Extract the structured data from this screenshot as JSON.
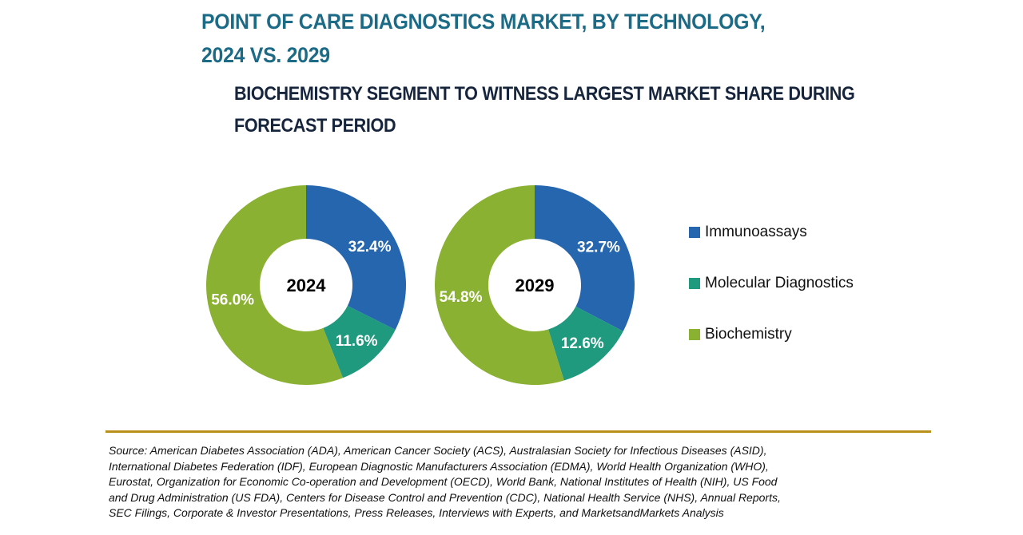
{
  "title_line1": "POINT OF CARE DIAGNOSTICS MARKET, BY TECHNOLOGY,",
  "title_line2": "2024 VS. 2029",
  "subtitle_line1": "BIOCHEMISTRY SEGMENT TO WITNESS LARGEST MARKET SHARE DURING",
  "subtitle_line2": "FORECAST PERIOD",
  "source_lines": [
    "Source: American Diabetes Association (ADA), American Cancer Society (ACS), Australasian Society for Infectious Diseases (ASID),",
    "International Diabetes Federation (IDF), European Diagnostic Manufacturers Association (EDMA), World Health Organization (WHO),",
    "Eurostat, Organization for Economic Co-operation and Development (OECD), World Bank, National Institutes of Health (NIH), US Food",
    "and Drug Administration (US FDA), Centers for Disease Control and Prevention (CDC), National Health Service (NHS), Annual Reports,",
    "SEC Filings, Corporate & Investor Presentations, Press Releases, Interviews with Experts, and MarketsandMarkets Analysis"
  ],
  "colors": {
    "title": "#1b6a86",
    "rule": "#b8901a"
  },
  "chart_data": {
    "type": "pie",
    "subtype": "donut",
    "title": "POINT OF CARE DIAGNOSTICS MARKET, BY TECHNOLOGY, 2024 VS. 2029",
    "categories": [
      "Immunoassays",
      "Molecular Diagnostics",
      "Biochemistry"
    ],
    "colors": [
      "#2566ae",
      "#1f9a7e",
      "#8bb133"
    ],
    "legend": {
      "position": "right",
      "entries": [
        "Immunoassays",
        "Molecular Diagnostics",
        "Biochemistry"
      ]
    },
    "series": [
      {
        "name": "2024",
        "values": [
          32.4,
          11.6,
          56.0
        ],
        "labels": [
          "32.4%",
          "11.6%",
          "56.0%"
        ]
      },
      {
        "name": "2029",
        "values": [
          32.7,
          12.6,
          54.8
        ],
        "labels": [
          "32.7%",
          "12.6%",
          "54.8%"
        ]
      }
    ],
    "unit": "%"
  }
}
